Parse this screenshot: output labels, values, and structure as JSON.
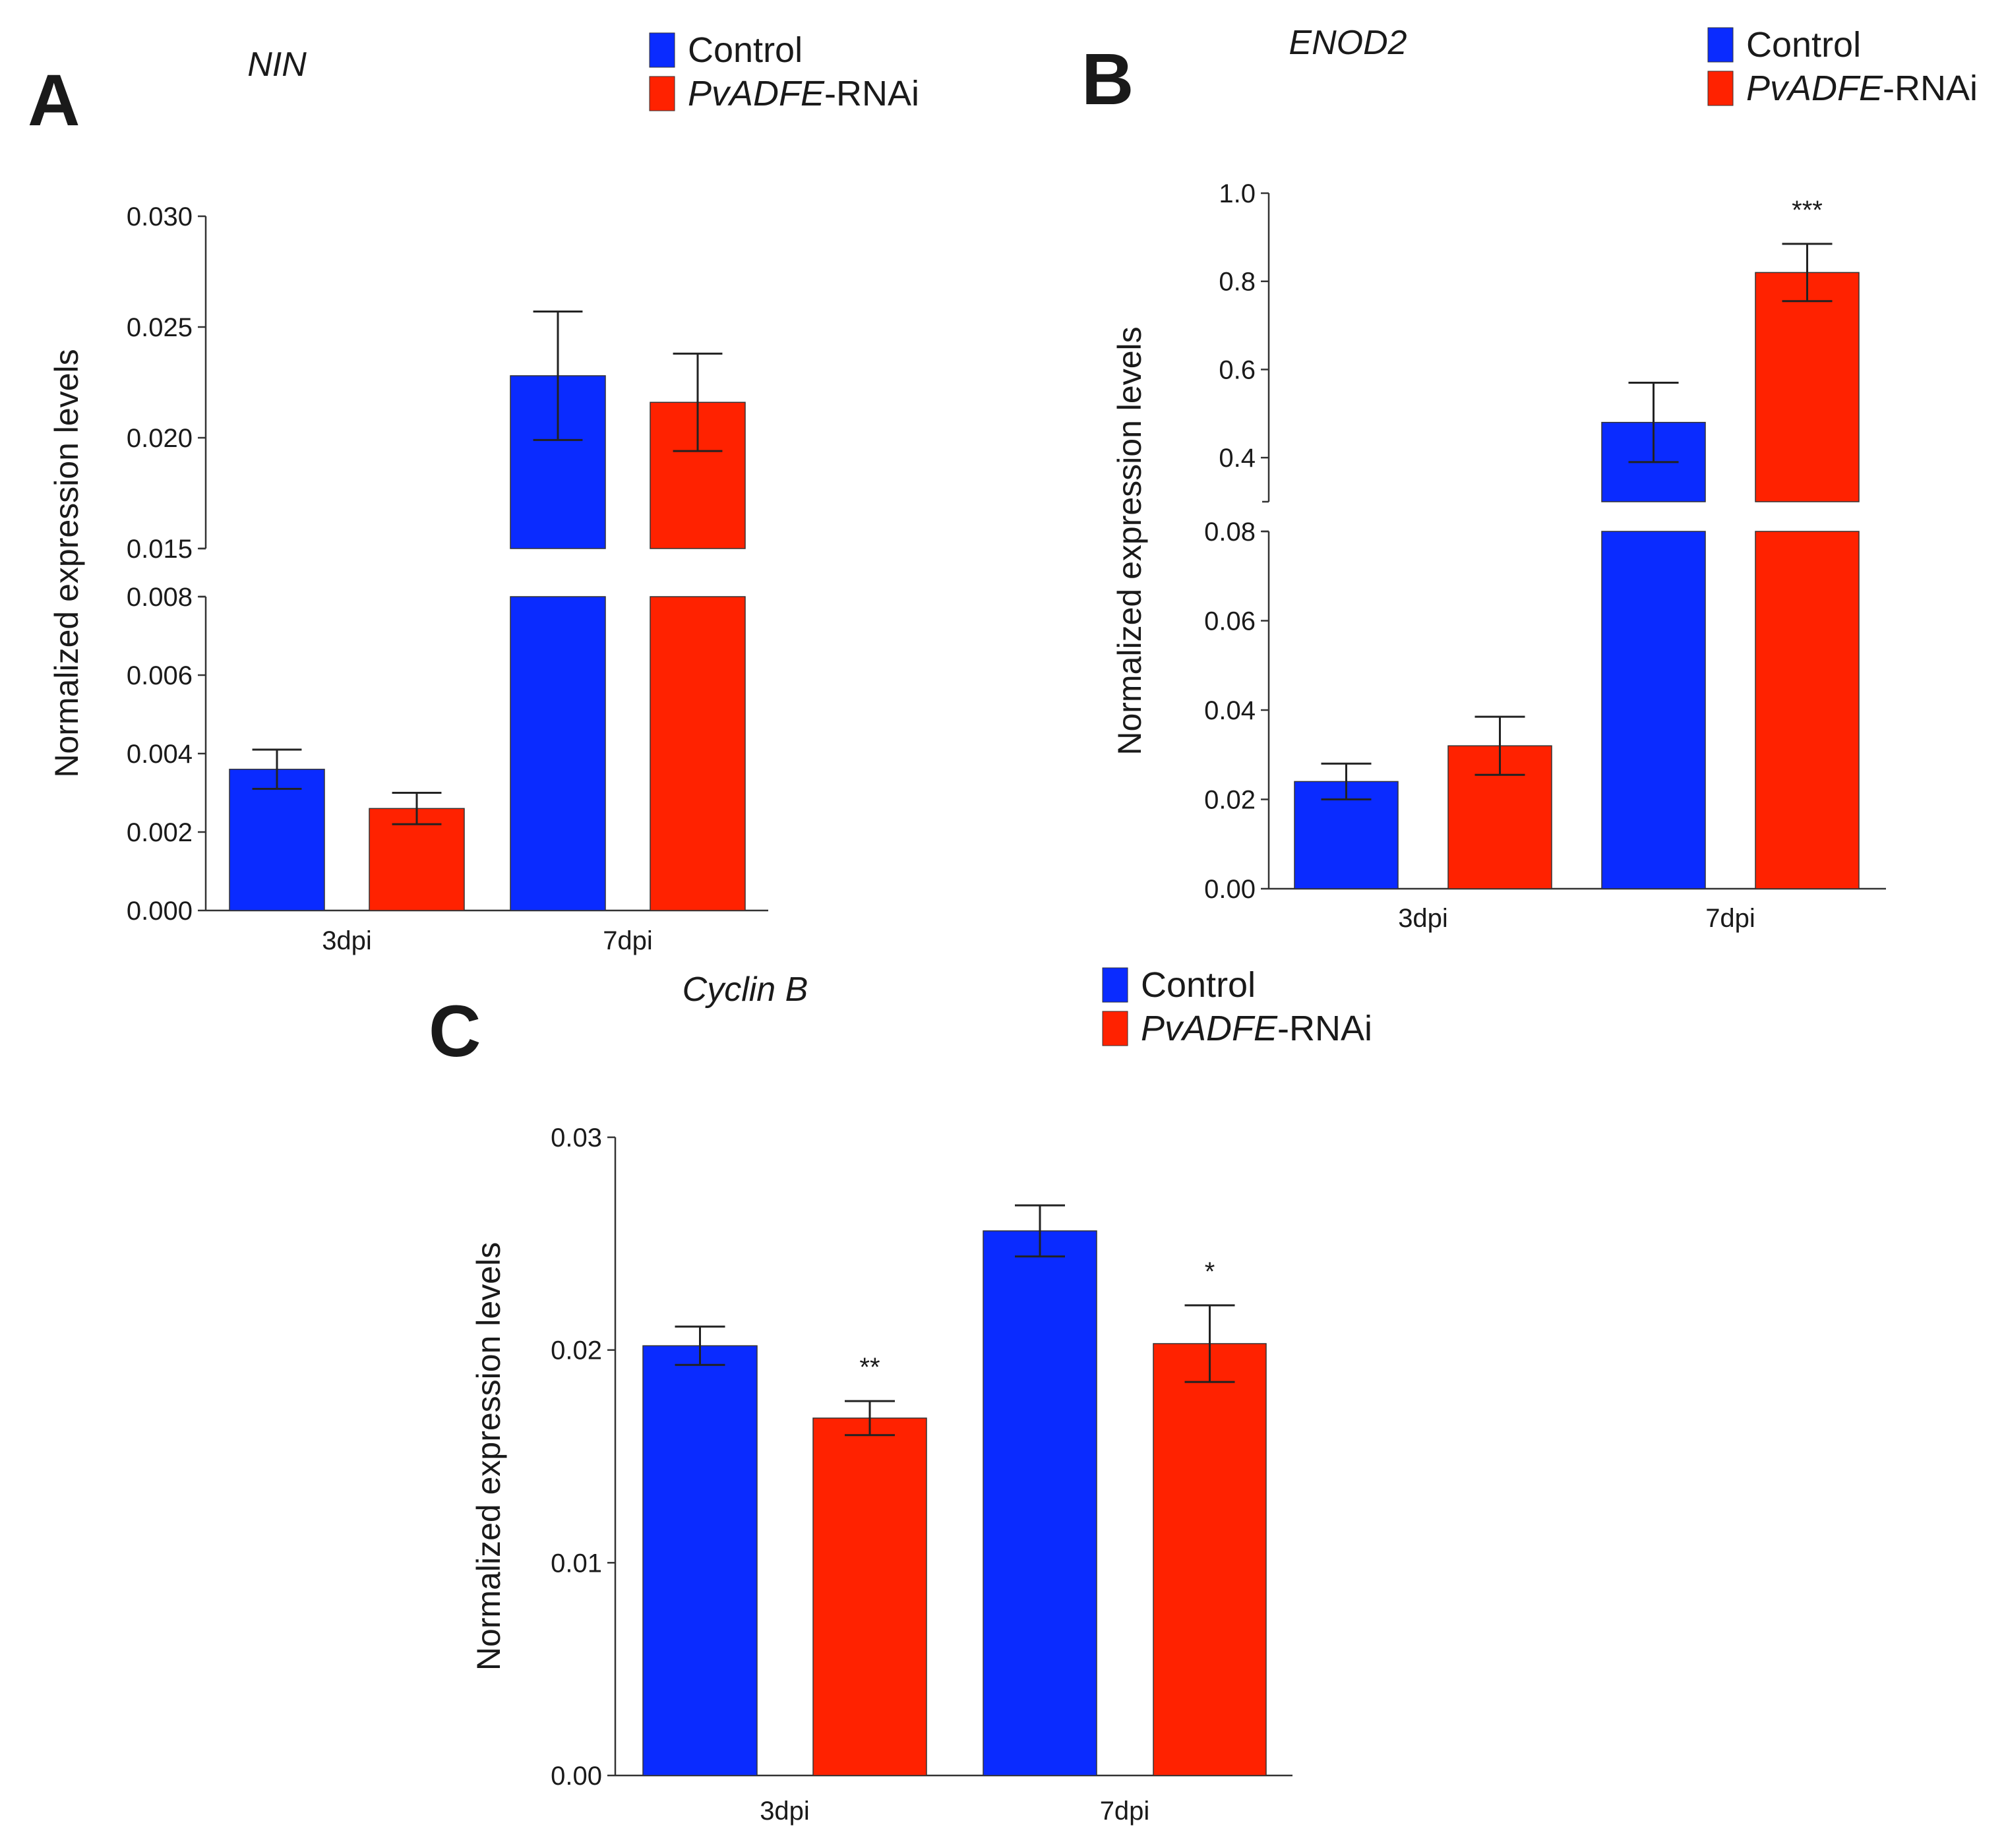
{
  "colors": {
    "control": "#0a2bff",
    "rnai": "#ff2200"
  },
  "chart_data": [
    {
      "panel": "A",
      "type": "bar",
      "title": "NIN",
      "ylabel": "Normalized expression levels",
      "categories": [
        "3dpi",
        "7dpi"
      ],
      "legend": [
        {
          "name": "Control",
          "label_italic": "",
          "label_plain": "Control"
        },
        {
          "name": "PvADFE-RNAi",
          "label_italic": "PvADFE",
          "label_plain": "-RNAi"
        }
      ],
      "axis_break": true,
      "lower_ylim": [
        0,
        0.008
      ],
      "upper_ylim": [
        0.015,
        0.03
      ],
      "lower_ticks": [
        "0.000",
        "0.002",
        "0.004",
        "0.006",
        "0.008"
      ],
      "upper_ticks": [
        "0.015",
        "0.020",
        "0.025",
        "0.030"
      ],
      "series": [
        {
          "name": "Control",
          "values": [
            0.0036,
            0.0228
          ],
          "errors": [
            0.0005,
            0.0029
          ]
        },
        {
          "name": "PvADFE-RNAi",
          "values": [
            0.0026,
            0.0216
          ],
          "errors": [
            0.0004,
            0.0022
          ]
        }
      ],
      "annotations": [
        "",
        "",
        "",
        ""
      ]
    },
    {
      "panel": "B",
      "type": "bar",
      "title": "ENOD2",
      "ylabel": "Normalized expression levels",
      "categories": [
        "3dpi",
        "7dpi"
      ],
      "legend": [
        {
          "name": "Control",
          "label_italic": "",
          "label_plain": "Control"
        },
        {
          "name": "PvADFE-RNAi",
          "label_italic": "PvADFE",
          "label_plain": "-RNAi"
        }
      ],
      "axis_break": true,
      "lower_ylim": [
        0,
        0.08
      ],
      "upper_ylim": [
        0.3,
        1.0
      ],
      "lower_ticks": [
        "0.00",
        "0.02",
        "0.04",
        "0.06",
        "0.08"
      ],
      "upper_ticks": [
        "0.4",
        "0.6",
        "0.8",
        "1.0"
      ],
      "series": [
        {
          "name": "Control",
          "values": [
            0.024,
            0.48
          ],
          "errors": [
            0.004,
            0.09
          ]
        },
        {
          "name": "PvADFE-RNAi",
          "values": [
            0.032,
            0.82
          ],
          "errors": [
            0.0065,
            0.065
          ]
        }
      ],
      "annotations": [
        "",
        "",
        "",
        "***"
      ]
    },
    {
      "panel": "C",
      "type": "bar",
      "title": "Cyclin B",
      "ylabel": "Normalized expression levels",
      "categories": [
        "3dpi",
        "7dpi"
      ],
      "legend": [
        {
          "name": "Control",
          "label_italic": "",
          "label_plain": "Control"
        },
        {
          "name": "PvADFE-RNAi",
          "label_italic": "PvADFE",
          "label_plain": "-RNAi"
        }
      ],
      "axis_break": false,
      "ylim": [
        0,
        0.03
      ],
      "ticks": [
        "0.00",
        "0.01",
        "0.02",
        "0.03"
      ],
      "series": [
        {
          "name": "Control",
          "values": [
            0.0202,
            0.0256
          ],
          "errors": [
            0.0009,
            0.0012
          ]
        },
        {
          "name": "PvADFE-RNAi",
          "values": [
            0.0168,
            0.0203
          ],
          "errors": [
            0.0008,
            0.0018
          ]
        }
      ],
      "annotations": [
        "",
        "**",
        "",
        "*"
      ]
    }
  ]
}
